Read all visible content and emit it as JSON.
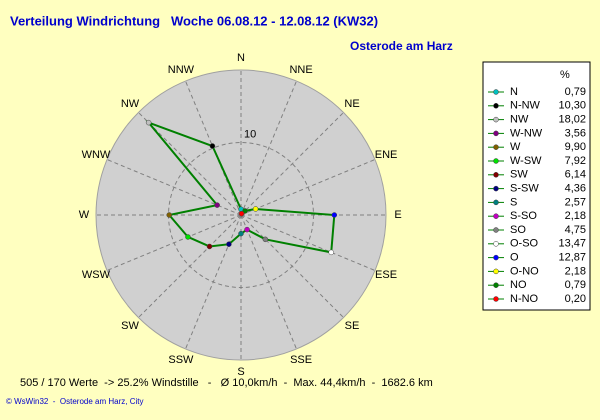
{
  "chart_data": {
    "type": "radar",
    "title": "Verteilung Windrichtung   Woche 06.08.12 - 12.08.12 (KW32)",
    "subtitle": "Osterode am Harz",
    "axis_labels": [
      "N",
      "NNE",
      "NE",
      "ENE",
      "E",
      "ESE",
      "SE",
      "SSE",
      "S",
      "SSW",
      "SW",
      "WSW",
      "W",
      "WNW",
      "NW",
      "NNW"
    ],
    "categories": [
      "N",
      "N-NW",
      "NW",
      "W-NW",
      "W",
      "W-SW",
      "SW",
      "S-SW",
      "S",
      "S-SO",
      "SO",
      "O-SO",
      "O",
      "O-NO",
      "NO",
      "N-NO"
    ],
    "values": [
      0.79,
      10.3,
      18.02,
      3.56,
      9.9,
      7.92,
      6.14,
      4.36,
      2.57,
      2.18,
      4.75,
      13.47,
      12.87,
      2.18,
      0.79,
      0.2
    ],
    "value_labels": [
      "0,79",
      "10,30",
      "18,02",
      "3,56",
      "9,90",
      "7,92",
      "6,14",
      "4,36",
      "2,57",
      "2,18",
      "4,75",
      "13,47",
      "12,87",
      "2,18",
      "0,79",
      "0,20"
    ],
    "colors": [
      "#00c0c0",
      "#000000",
      "#c0c0c0",
      "#800080",
      "#806000",
      "#00e000",
      "#800000",
      "#000080",
      "#008080",
      "#c000c0",
      "#808080",
      "#ffffff",
      "#0000ff",
      "#ffff00",
      "#008000",
      "#ff0000"
    ],
    "line_color": "#008000",
    "legend_header": "%",
    "rlim": [
      0,
      20
    ],
    "rticks": [
      10
    ],
    "footer": "505 / 170 Werte  -> 25.2% Windstille   -   Ø 10,0km/h  -  Max. 44,4km/h  -  1682.6 km",
    "credit": "© WsWin32  -  Osterode am Harz, City"
  }
}
